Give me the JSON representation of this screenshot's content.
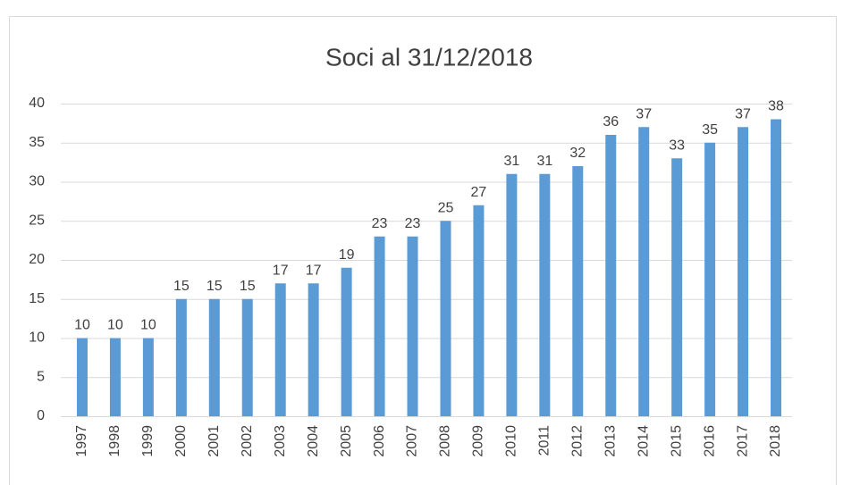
{
  "chart_data": {
    "type": "bar",
    "title": "Soci al 31/12/2018",
    "categories": [
      "1997",
      "1998",
      "1999",
      "2000",
      "2001",
      "2002",
      "2003",
      "2004",
      "2005",
      "2006",
      "2007",
      "2008",
      "2009",
      "2010",
      "2011",
      "2012",
      "2013",
      "2014",
      "2015",
      "2016",
      "2017",
      "2018"
    ],
    "values": [
      10,
      10,
      10,
      15,
      15,
      15,
      17,
      17,
      19,
      23,
      23,
      25,
      27,
      31,
      31,
      32,
      36,
      37,
      33,
      35,
      37,
      38
    ],
    "color": "#5b9bd5",
    "ylim": [
      0,
      40
    ],
    "yticks": [
      0,
      5,
      10,
      15,
      20,
      25,
      30,
      35,
      40
    ],
    "grid": true
  }
}
